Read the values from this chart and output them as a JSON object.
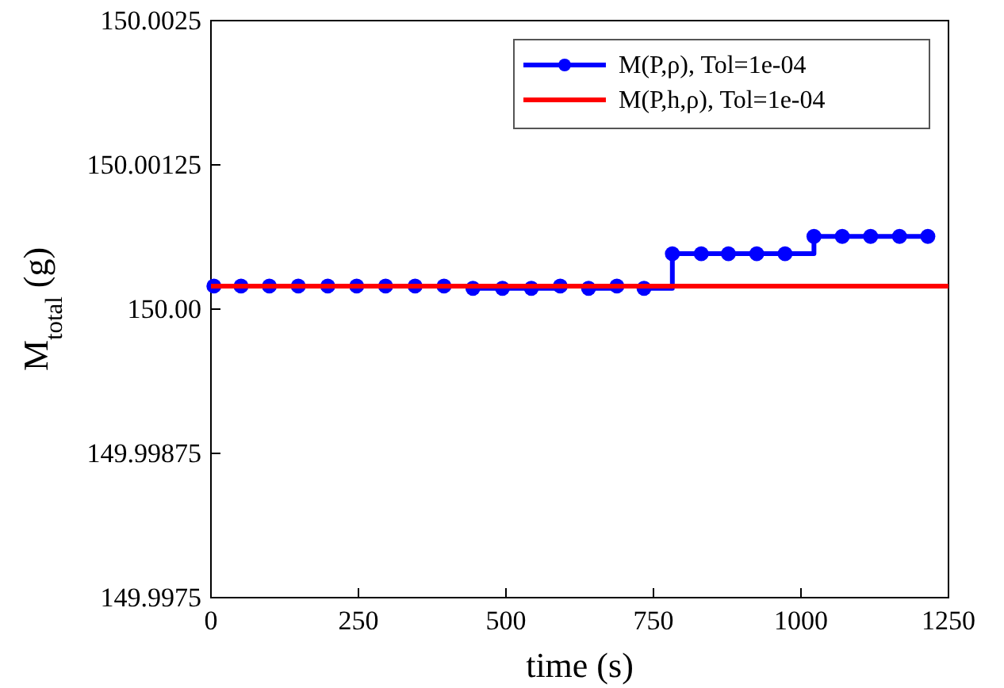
{
  "chart_data": {
    "type": "step",
    "xlabel": "time (s)",
    "ylabel": "M$_{total}$ (g)",
    "xlim": [
      0,
      1250
    ],
    "xticks": [
      0,
      250,
      500,
      750,
      1000,
      1250
    ],
    "ylim": [
      149.9975,
      150.0025
    ],
    "yticks": [
      {
        "value": 149.9975,
        "label": "149.9975"
      },
      {
        "value": 149.99875,
        "label": "149.99875"
      },
      {
        "value": 150.0,
        "label": "150.00"
      },
      {
        "value": 150.00125,
        "label": "150.00125"
      },
      {
        "value": 150.0025,
        "label": "150.0025"
      }
    ],
    "grid": false,
    "legend": "top right",
    "series": [
      {
        "name": "M(P,ρ), Tol=1e-04",
        "color": "#0000ff",
        "marker": "circle",
        "x": [
          5,
          51,
          99,
          148,
          198,
          247,
          296,
          346,
          395,
          444,
          494,
          543,
          592,
          640,
          688,
          734,
          782,
          831,
          877,
          925,
          973,
          1022,
          1070,
          1118,
          1167,
          1215
        ],
        "values": [
          150.0002,
          150.0002,
          150.0002,
          150.0002,
          150.0002,
          150.0002,
          150.0002,
          150.0002,
          150.0002,
          150.00018,
          150.00018,
          150.00018,
          150.0002,
          150.00018,
          150.0002,
          150.00018,
          150.00048,
          150.00048,
          150.00048,
          150.00048,
          150.00048,
          150.00063,
          150.00063,
          150.00063,
          150.00063,
          150.00063
        ]
      },
      {
        "name": "M(P,h,ρ), Tol=1e-04",
        "color": "#ff0000",
        "type": "line",
        "marker": "none",
        "x": [
          0,
          1250
        ],
        "values": [
          150.0002,
          150.0002
        ]
      }
    ]
  }
}
